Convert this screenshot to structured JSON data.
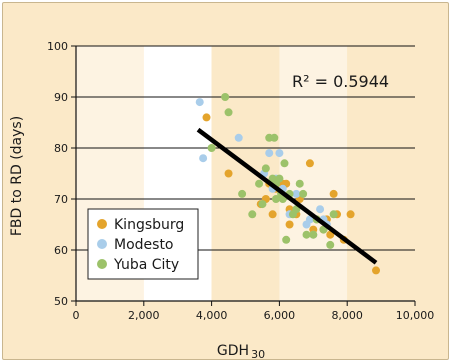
{
  "chart_data": {
    "type": "scatter",
    "xlabel": "GDH",
    "xlabel_subscript": "30",
    "ylabel": "FBD to RD (days)",
    "xlim": [
      0,
      10000
    ],
    "ylim": [
      50,
      100
    ],
    "xticks": [
      0,
      2000,
      4000,
      6000,
      8000,
      10000
    ],
    "xtick_labels": [
      "0",
      "2,000",
      "4,000",
      "6,000",
      "8,000",
      "10,000"
    ],
    "yticks": [
      50,
      60,
      70,
      80,
      90,
      100
    ],
    "ytick_labels": [
      "50",
      "60",
      "70",
      "80",
      "90",
      "100"
    ],
    "grid": true,
    "legend_position": "bottom-left",
    "annotation": "R² = 0.5944",
    "background_bands": {
      "colors": [
        "#fbe9c8",
        "#fdf3e2",
        "#ffffff"
      ]
    },
    "trendline": {
      "x": [
        3600,
        8850
      ],
      "y": [
        83.6,
        57.5
      ],
      "color": "#000000"
    },
    "series": [
      {
        "name": "Kingsburg",
        "color": "#e4a42c",
        "x": [
          3850,
          4500,
          5450,
          5600,
          5700,
          5800,
          5900,
          6100,
          6200,
          6300,
          6300,
          6500,
          6600,
          6900,
          7000,
          7100,
          7300,
          7400,
          7500,
          7600,
          7700,
          7900,
          8100,
          8850
        ],
        "y": [
          86,
          75,
          69,
          70,
          73,
          67,
          72,
          73,
          73,
          68,
          65,
          67,
          70,
          77,
          64,
          66,
          64,
          66,
          63,
          71,
          67,
          62,
          67,
          56
        ]
      },
      {
        "name": "Modesto",
        "color": "#a9cdea",
        "x": [
          3650,
          3750,
          4800,
          5550,
          5700,
          5800,
          5900,
          6000,
          6100,
          6300,
          6500,
          6800,
          6900,
          7000,
          7200,
          7300,
          7400
        ],
        "y": [
          89,
          78,
          82,
          75,
          79,
          72,
          74,
          79,
          72,
          67,
          71,
          65,
          66,
          63,
          68,
          66,
          65
        ]
      },
      {
        "name": "Yuba City",
        "color": "#9cc26a",
        "x": [
          4000,
          4400,
          4500,
          4900,
          5200,
          5400,
          5500,
          5600,
          5700,
          5800,
          5850,
          5900,
          5900,
          6000,
          6050,
          6100,
          6150,
          6200,
          6300,
          6400,
          6500,
          6600,
          6700,
          6800,
          7000,
          7100,
          7300,
          7500,
          7600
        ],
        "y": [
          80,
          90,
          87,
          71,
          67,
          73,
          69,
          76,
          82,
          74,
          82,
          70,
          73,
          74,
          71,
          70,
          77,
          62,
          71,
          67,
          68,
          73,
          71,
          63,
          63,
          66,
          64,
          61,
          67
        ]
      }
    ]
  }
}
